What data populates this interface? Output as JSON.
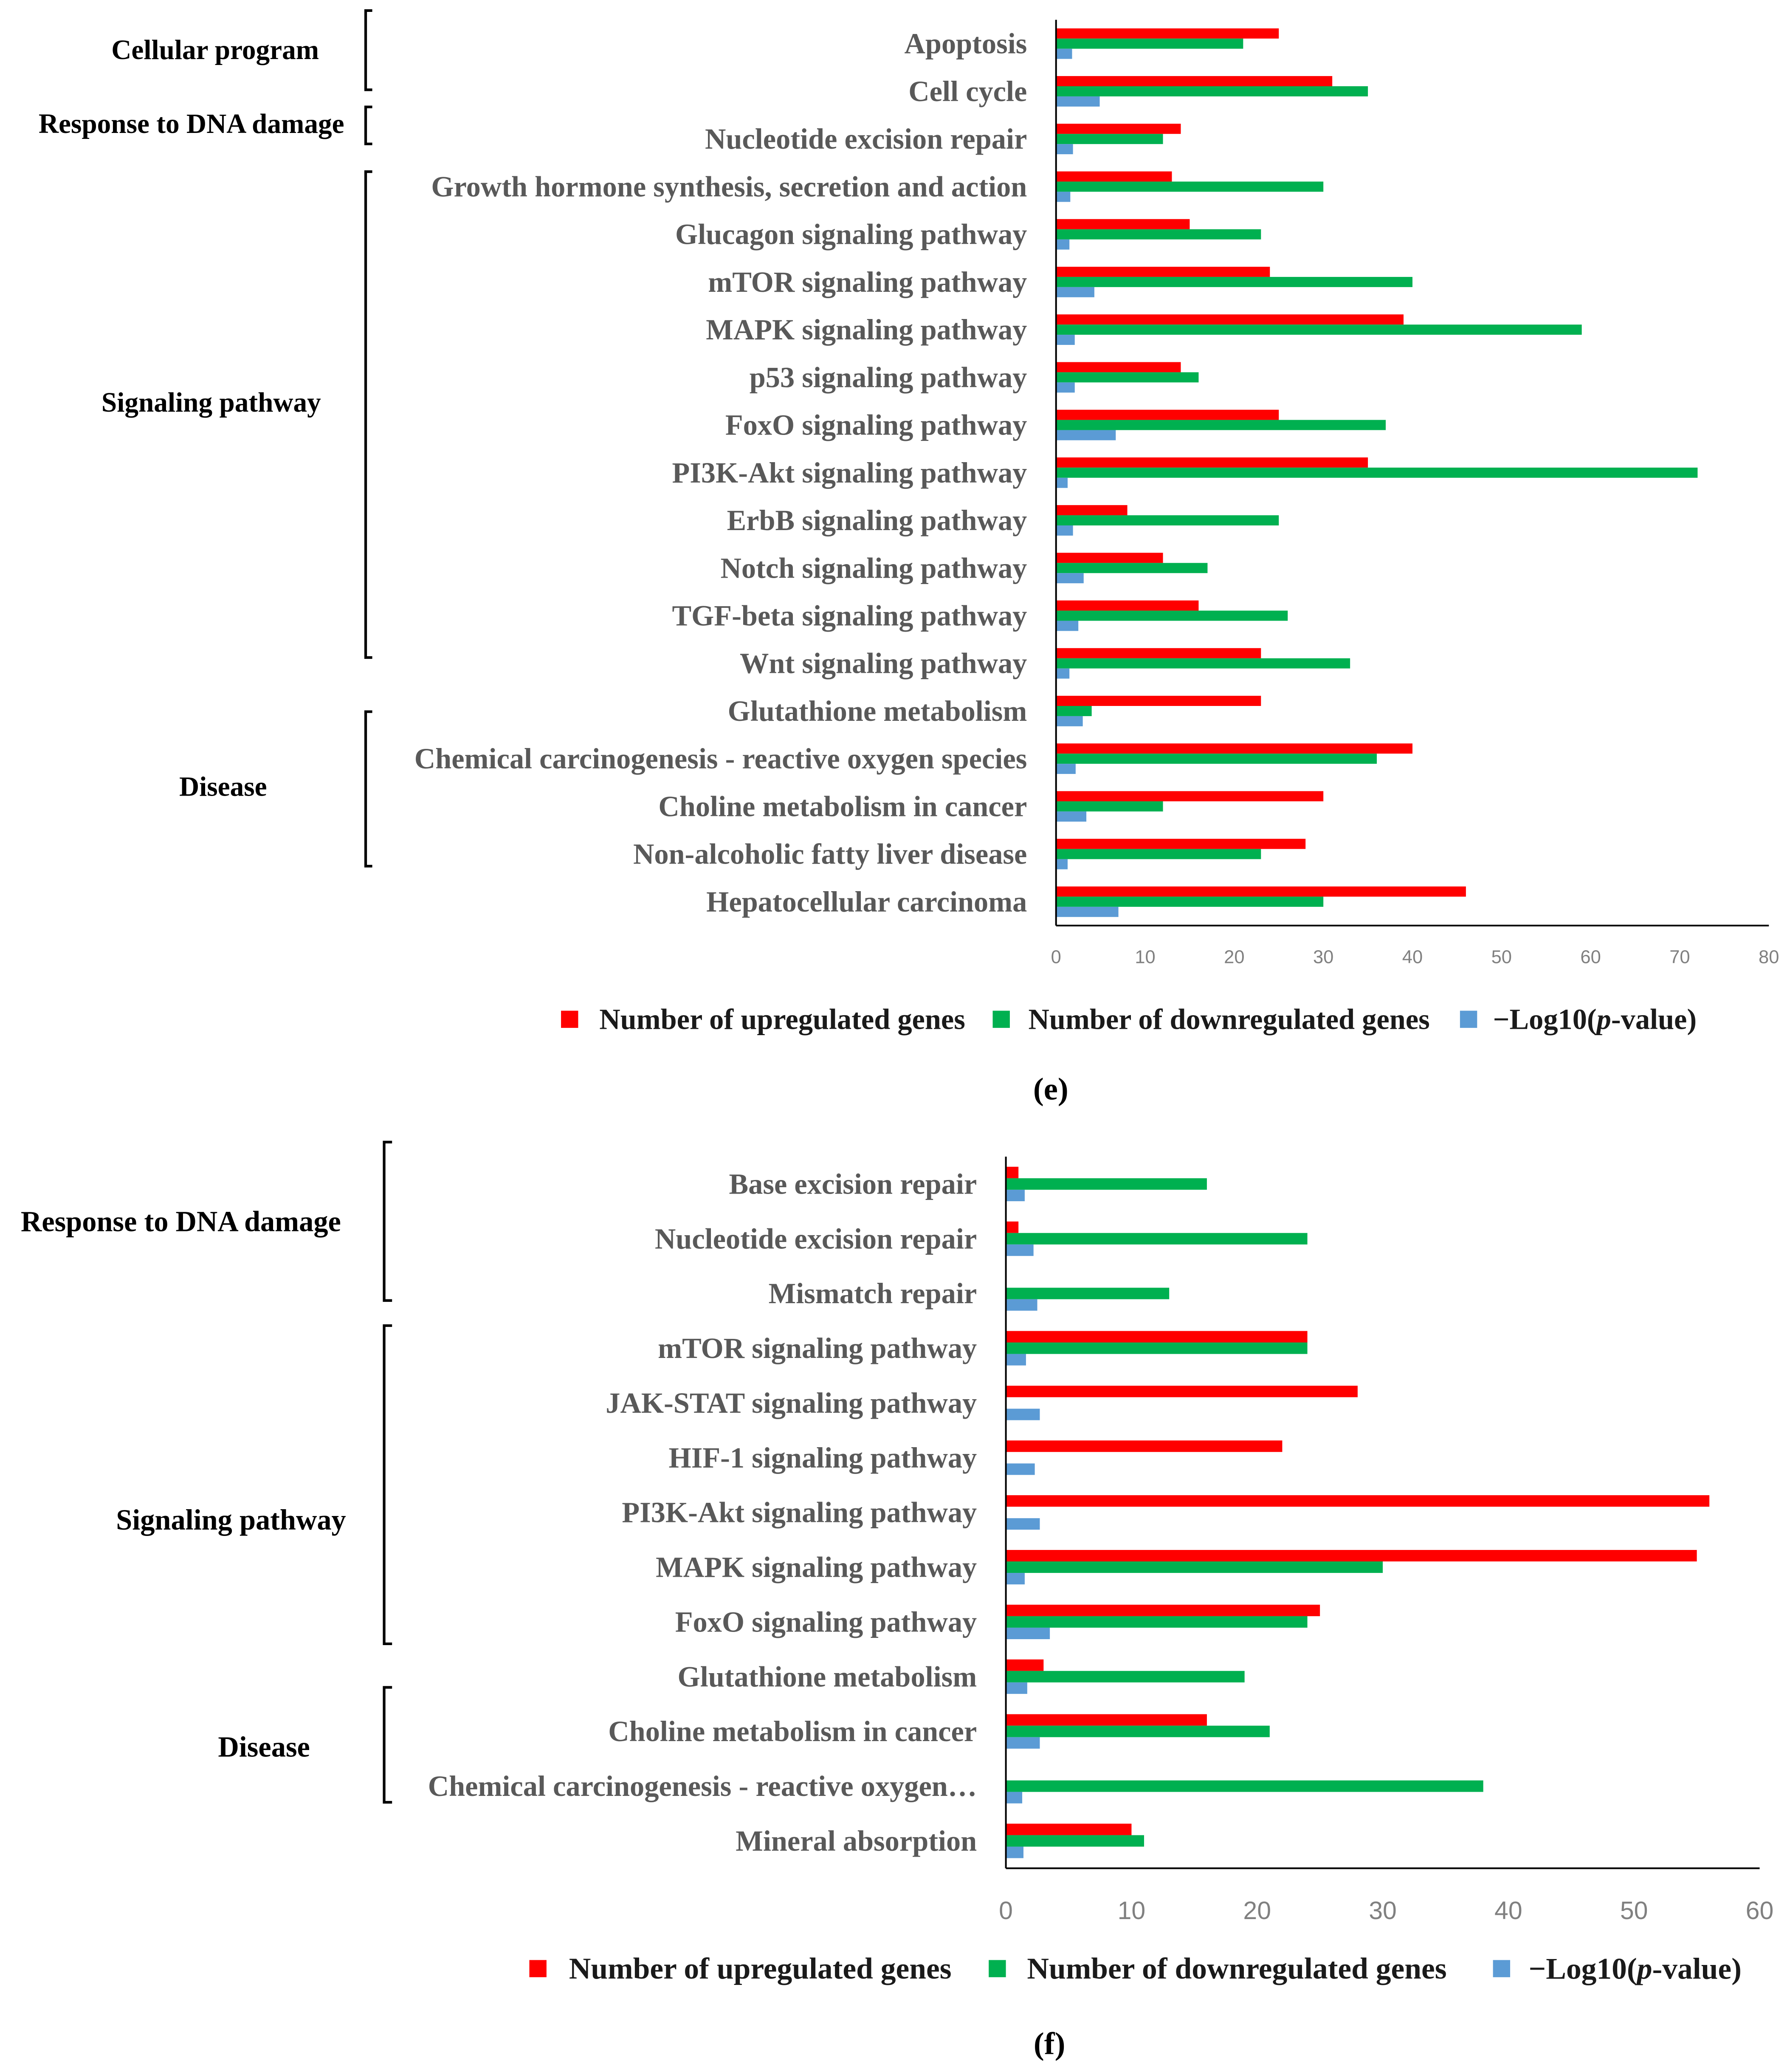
{
  "chart_data": [
    {
      "type": "bar",
      "panel_label": "(e)",
      "categories": [
        "Apoptosis",
        "Cell cycle",
        "Nucleotide excision repair",
        "Growth hormone synthesis, secretion and action",
        "Glucagon signaling pathway",
        "mTOR signaling pathway",
        "MAPK signaling pathway",
        "p53 signaling pathway",
        "FoxO signaling pathway",
        "PI3K-Akt signaling pathway",
        "ErbB signaling pathway",
        "Notch signaling pathway",
        "TGF-beta signaling pathway",
        "Wnt signaling pathway",
        "Glutathione metabolism",
        "Chemical carcinogenesis - reactive oxygen species",
        "Choline metabolism in cancer",
        "Non-alcoholic fatty liver disease",
        "Hepatocellular carcinoma"
      ],
      "series": [
        {
          "name": "Number of upregulated genes",
          "color": "#FF0000",
          "values": [
            25,
            31,
            14,
            13,
            15,
            24,
            39,
            14,
            25,
            35,
            8,
            12,
            16,
            23,
            23,
            40,
            30,
            28,
            46
          ]
        },
        {
          "name": "Number of downregulated genes",
          "color": "#00B050",
          "values": [
            21,
            35,
            12,
            30,
            23,
            40,
            59,
            16,
            37,
            72,
            25,
            17,
            26,
            33,
            4,
            36,
            12,
            23,
            30
          ]
        },
        {
          "name": "−Log10(p-value)",
          "color": "#5B9BD5",
          "values": [
            1.8,
            4.9,
            1.9,
            1.6,
            1.5,
            4.3,
            2.1,
            2.1,
            6.7,
            1.3,
            1.9,
            3.1,
            2.5,
            1.5,
            3.0,
            2.2,
            3.4,
            1.3,
            7.0
          ]
        }
      ],
      "xlim": [
        0,
        80
      ],
      "xticks": [
        0,
        10,
        20,
        30,
        40,
        50,
        60,
        70,
        80
      ],
      "groups": [
        {
          "label": "Cellular program",
          "first": 0,
          "last": 1
        },
        {
          "label": "Response to DNA damage",
          "first": 2,
          "last": 2
        },
        {
          "label": "Signaling pathway",
          "first": 3,
          "last": 13
        },
        {
          "label": "Disease",
          "first": 14,
          "last": 17
        }
      ],
      "legend_position": "bottom",
      "grid": false
    },
    {
      "type": "bar",
      "panel_label": "(f)",
      "categories": [
        "Base excision repair",
        "Nucleotide excision repair",
        "Mismatch repair",
        "mTOR signaling pathway",
        "JAK-STAT signaling pathway",
        "HIF-1 signaling pathway",
        "PI3K-Akt signaling pathway",
        "MAPK signaling pathway",
        "FoxO signaling pathway",
        "Glutathione metabolism",
        "Choline metabolism in cancer",
        "Chemical carcinogenesis - reactive oxygen…",
        "Mineral absorption"
      ],
      "series": [
        {
          "name": "Number of upregulated genes",
          "color": "#FF0000",
          "values": [
            1,
            1,
            0,
            24,
            28,
            22,
            56,
            55,
            25,
            3,
            16,
            0,
            10
          ]
        },
        {
          "name": "Number of downregulated genes",
          "color": "#00B050",
          "values": [
            16,
            24,
            13,
            24,
            0,
            0,
            0,
            30,
            24,
            19,
            21,
            38,
            11
          ]
        },
        {
          "name": "−Log10(p-value)",
          "color": "#5B9BD5",
          "values": [
            1.5,
            2.2,
            2.5,
            1.6,
            2.7,
            2.3,
            2.7,
            1.5,
            3.5,
            1.7,
            2.7,
            1.3,
            1.4
          ]
        }
      ],
      "xlim": [
        0,
        60
      ],
      "xticks": [
        0,
        10,
        20,
        30,
        40,
        50,
        60
      ],
      "groups": [
        {
          "label": "Response to DNA damage",
          "first": 0,
          "last": 2
        },
        {
          "label": "Signaling pathway",
          "first": 3,
          "last": 8
        },
        {
          "label": "Disease",
          "first": 9,
          "last": 11
        }
      ],
      "legend_position": "bottom",
      "grid": false
    }
  ]
}
